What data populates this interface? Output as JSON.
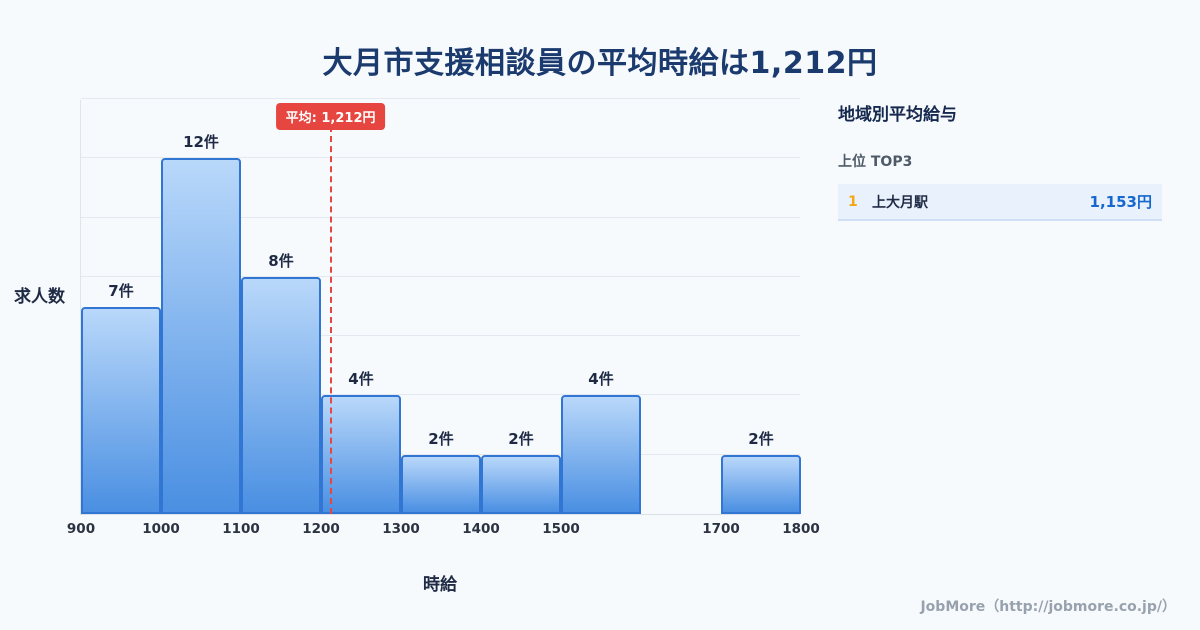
{
  "page": {
    "title": "大月市支援相談員の平均時給は1,212円",
    "footer": "JobMore（http://jobmore.co.jp/）",
    "background": "#f7fafd"
  },
  "chart_data": {
    "type": "bar",
    "title": "大月市支援相談員の平均時給は1,212円",
    "xlabel": "時給",
    "ylabel": "求人数",
    "xlim": [
      900,
      1800
    ],
    "ylim": [
      0,
      14
    ],
    "grid_step": 2,
    "grid": "horizontal",
    "x_ticks": [
      900,
      1000,
      1100,
      1200,
      1300,
      1400,
      1500,
      1700,
      1800
    ],
    "bars": [
      {
        "x_start": 900,
        "x_end": 1000,
        "count": 7,
        "label": "7件"
      },
      {
        "x_start": 1000,
        "x_end": 1100,
        "count": 12,
        "label": "12件"
      },
      {
        "x_start": 1100,
        "x_end": 1200,
        "count": 8,
        "label": "8件"
      },
      {
        "x_start": 1200,
        "x_end": 1300,
        "count": 4,
        "label": "4件"
      },
      {
        "x_start": 1300,
        "x_end": 1400,
        "count": 2,
        "label": "2件"
      },
      {
        "x_start": 1400,
        "x_end": 1500,
        "count": 2,
        "label": "2件"
      },
      {
        "x_start": 1500,
        "x_end": 1600,
        "count": 4,
        "label": "4件"
      },
      {
        "x_start": 1700,
        "x_end": 1800,
        "count": 2,
        "label": "2件"
      }
    ],
    "average_line": {
      "value": 1212,
      "label": "平均: 1,212円",
      "color": "#e64540"
    },
    "bar_colors": {
      "top": "#b9d8fa",
      "bottom": "#4a8fe2",
      "border": "#3076d2"
    }
  },
  "sidebar": {
    "heading": "地域別平均給与",
    "subheading": "上位 TOP3",
    "items": [
      {
        "rank": "1",
        "name": "上大月駅",
        "value": "1,153円"
      }
    ]
  }
}
